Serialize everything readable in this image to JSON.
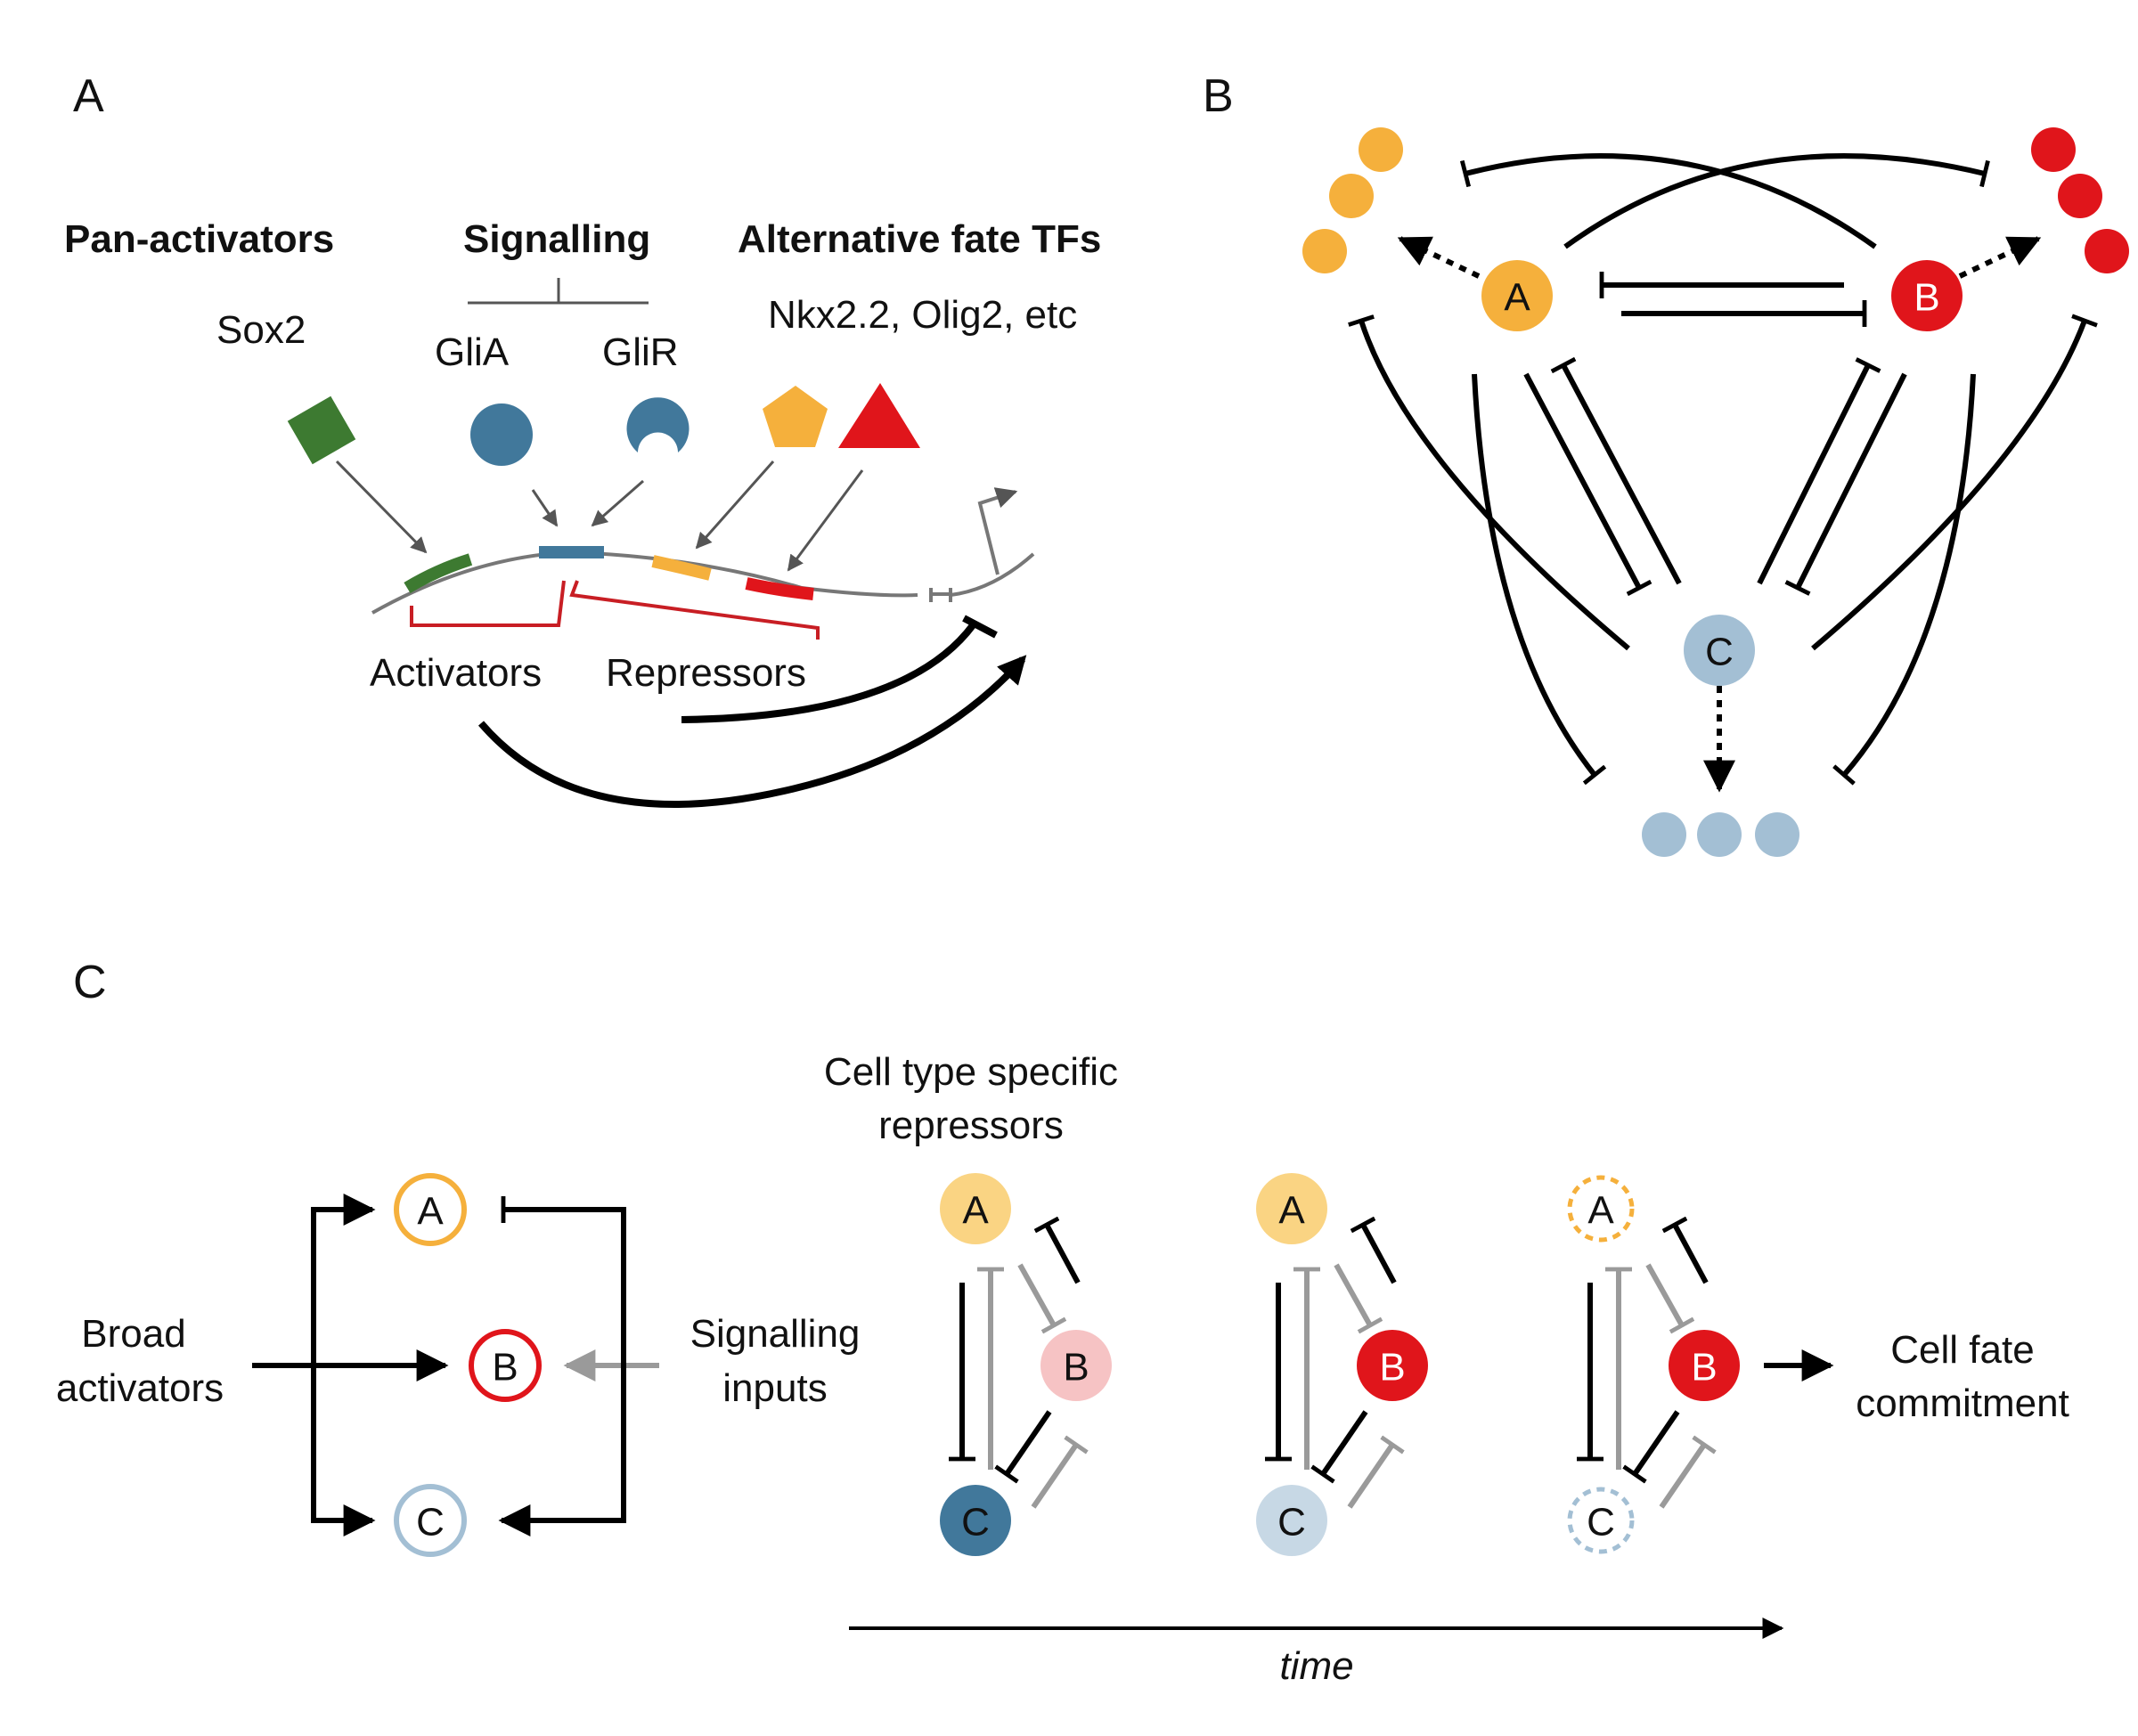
{
  "panels": {
    "a": "A",
    "b": "B",
    "c": "C"
  },
  "panel_a": {
    "pan_activators": "Pan-activators",
    "signalling": "Signalling",
    "alt_fate": "Alternative fate TFs",
    "sox2": "Sox2",
    "glia": "GliA",
    "glir": "GliR",
    "tfs": "Nkx2.2, Olig2, etc",
    "activators": "Activators",
    "repressors": "Repressors"
  },
  "panel_b": {
    "node_a": "A",
    "node_b": "B",
    "node_c": "C"
  },
  "panel_c": {
    "broad_activators_1": "Broad",
    "broad_activators_2": "activators",
    "signalling_inputs_1": "Signalling",
    "signalling_inputs_2": "inputs",
    "specific_repressors_1": "Cell type specific",
    "specific_repressors_2": "repressors",
    "cell_fate_1": "Cell fate",
    "cell_fate_2": "commitment",
    "time": "time",
    "node_a": "A",
    "node_b": "B",
    "node_c": "C"
  },
  "colors": {
    "orange": "#f5b03c",
    "red": "#e0151b",
    "blue": "#41789b",
    "light_blue": "#a3bfd4",
    "green": "#3d7a31",
    "pale_orange": "#fad483",
    "pale_red": "#f6c3c4",
    "pale_blue": "#c7d8e5",
    "grey": "#9a9a9a"
  }
}
